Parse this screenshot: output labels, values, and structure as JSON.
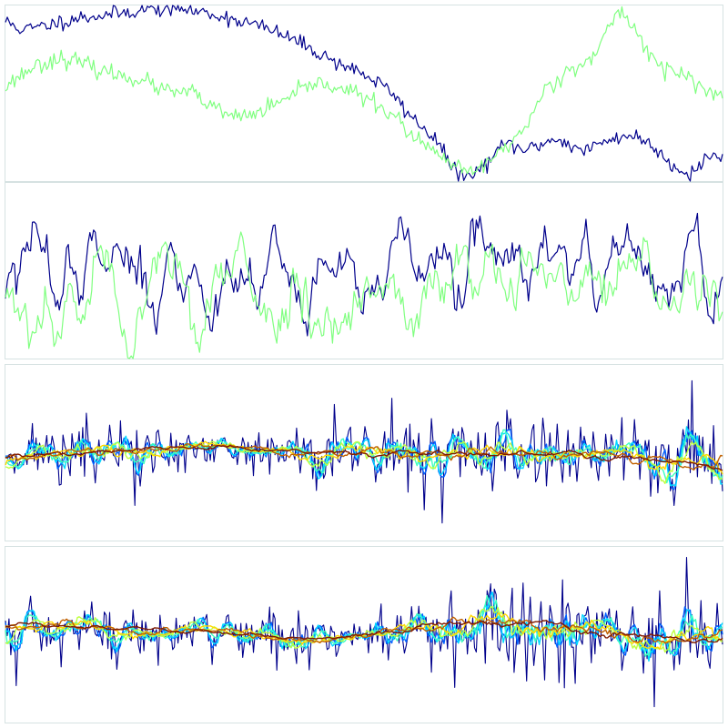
{
  "colors": {
    "navy": "#00008b",
    "light_green": "#80ff80",
    "frame": "#d6e2e2",
    "jet_ramp": [
      "#00008b",
      "#0060ff",
      "#00d8ff",
      "#40ffbf",
      "#bfff40",
      "#ffd800",
      "#c06000",
      "#7f1a00"
    ]
  },
  "chart_data": [
    {
      "type": "line",
      "panel": 1,
      "title": "",
      "xlabel": "",
      "ylabel": "",
      "ticks": "none",
      "grid": false,
      "xlim": [
        0,
        400
      ],
      "ylim": [
        0,
        100
      ],
      "series": [
        {
          "color": "#00008b",
          "keypoints": [
            [
              0,
              91
            ],
            [
              10,
              86
            ],
            [
              20,
              88
            ],
            [
              40,
              93
            ],
            [
              60,
              95
            ],
            [
              80,
              98
            ],
            [
              100,
              98
            ],
            [
              120,
              94
            ],
            [
              140,
              89
            ],
            [
              160,
              81
            ],
            [
              180,
              70
            ],
            [
              200,
              61
            ],
            [
              215,
              51
            ],
            [
              225,
              38
            ],
            [
              240,
              24
            ],
            [
              250,
              6
            ],
            [
              260,
              2
            ],
            [
              268,
              10
            ],
            [
              280,
              22
            ],
            [
              290,
              17
            ],
            [
              300,
              22
            ],
            [
              310,
              24
            ],
            [
              320,
              17
            ],
            [
              330,
              20
            ],
            [
              340,
              25
            ],
            [
              350,
              26
            ],
            [
              360,
              21
            ],
            [
              372,
              9
            ],
            [
              382,
              4
            ],
            [
              392,
              14
            ],
            [
              400,
              14
            ]
          ],
          "noise": 2.2,
          "seed": 11
        },
        {
          "color": "#80ff80",
          "keypoints": [
            [
              0,
              54
            ],
            [
              15,
              65
            ],
            [
              30,
              70
            ],
            [
              40,
              68
            ],
            [
              50,
              64
            ],
            [
              60,
              61
            ],
            [
              75,
              58
            ],
            [
              90,
              51
            ],
            [
              105,
              50
            ],
            [
              115,
              42
            ],
            [
              125,
              37
            ],
            [
              135,
              37
            ],
            [
              150,
              43
            ],
            [
              160,
              48
            ],
            [
              172,
              56
            ],
            [
              185,
              54
            ],
            [
              195,
              50
            ],
            [
              210,
              42
            ],
            [
              220,
              34
            ],
            [
              228,
              24
            ],
            [
              240,
              16
            ],
            [
              255,
              5
            ],
            [
              265,
              7
            ],
            [
              275,
              16
            ],
            [
              290,
              30
            ],
            [
              300,
              51
            ],
            [
              310,
              60
            ],
            [
              320,
              67
            ],
            [
              330,
              72
            ],
            [
              340,
              95
            ],
            [
              345,
              96
            ],
            [
              355,
              80
            ],
            [
              365,
              65
            ],
            [
              380,
              60
            ],
            [
              395,
              48
            ],
            [
              400,
              49
            ]
          ],
          "noise": 2.4,
          "seed": 23
        }
      ]
    },
    {
      "type": "line",
      "panel": 2,
      "title": "",
      "xlabel": "",
      "ylabel": "",
      "ticks": "none",
      "grid": false,
      "xlim": [
        0,
        400
      ],
      "ylim": [
        -100,
        100
      ],
      "series": [
        {
          "color": "#00008b",
          "keypoints": [
            [
              0,
              0
            ],
            [
              400,
              0
            ]
          ],
          "noise": 28,
          "smooth": 4,
          "seed": 37
        },
        {
          "color": "#80ff80",
          "keypoints": [
            [
              0,
              -25
            ],
            [
              400,
              -25
            ]
          ],
          "noise": 30,
          "smooth": 4,
          "seed": 53
        }
      ]
    },
    {
      "type": "line",
      "panel": 3,
      "title": "",
      "xlabel": "",
      "ylabel": "",
      "ticks": "none",
      "grid": false,
      "xlim": [
        0,
        400
      ],
      "ylim": [
        -100,
        100
      ],
      "layers": 8,
      "amplitude": 14,
      "spikes": [
        [
          72,
          -60
        ],
        [
          183,
          55
        ],
        [
          234,
          -65
        ],
        [
          244,
          -80
        ],
        [
          383,
          82
        ],
        [
          373,
          -60
        ],
        [
          216,
          62
        ]
      ],
      "seed": 71
    },
    {
      "type": "line",
      "panel": 4,
      "title": "",
      "xlabel": "",
      "ylabel": "",
      "ticks": "none",
      "grid": false,
      "xlim": [
        0,
        400
      ],
      "ylim": [
        -100,
        100
      ],
      "layers": 8,
      "amplitude": 14,
      "spikes": [
        [
          362,
          -82
        ],
        [
          380,
          88
        ],
        [
          271,
          58
        ],
        [
          365,
          50
        ],
        [
          251,
          -60
        ],
        [
          6,
          -58
        ]
      ],
      "seed": 97
    }
  ]
}
